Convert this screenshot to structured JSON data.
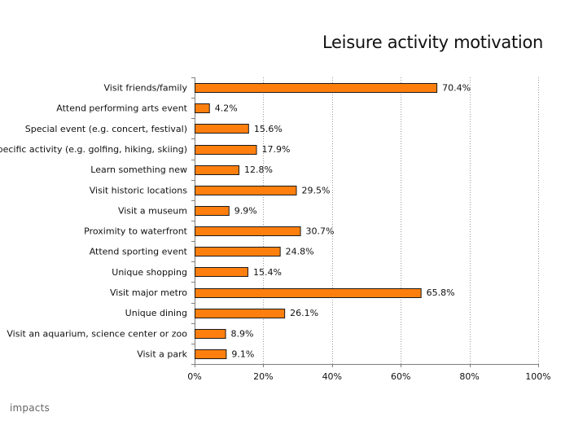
{
  "chart_data": {
    "type": "bar",
    "orientation": "horizontal",
    "title": "Leisure activity motivation",
    "categories": [
      "Visit friends/family",
      "Attend performing arts event",
      "Special event (e.g. concert, festival)",
      "Specific activity (e.g. golfing, hiking, skiing)",
      "Learn something new",
      "Visit historic locations",
      "Visit a museum",
      "Proximity to waterfront",
      "Attend sporting event",
      "Unique shopping",
      "Visit major metro",
      "Unique dining",
      "Visit an aquarium, science center or zoo",
      "Visit a park"
    ],
    "values": [
      70.4,
      4.2,
      15.6,
      17.9,
      12.8,
      29.5,
      9.9,
      30.7,
      24.8,
      15.4,
      65.8,
      26.1,
      8.9,
      9.1
    ],
    "value_labels": [
      "70.4%",
      "4.2%",
      "15.6%",
      "17.9%",
      "12.8%",
      "29.5%",
      "9.9%",
      "30.7%",
      "24.8%",
      "15.4%",
      "65.8%",
      "26.1%",
      "8.9%",
      "9.1%"
    ],
    "xlim": [
      0,
      100
    ],
    "xticks": [
      0,
      20,
      40,
      60,
      80,
      100
    ],
    "xtick_labels": [
      "0%",
      "20%",
      "40%",
      "60%",
      "80%",
      "100%"
    ],
    "xlabel": "",
    "ylabel": "",
    "grid": "vertical dotted",
    "legend": "none",
    "bar_color": "#ff7f0e",
    "bar_edge_color": "#1a1a1a"
  },
  "footer": {
    "logo_text": "impacts"
  }
}
